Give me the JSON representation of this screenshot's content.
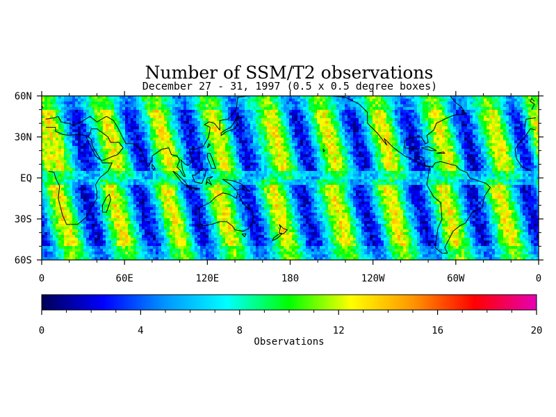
{
  "chart_data": {
    "type": "heatmap",
    "title": "Number of SSM/T2 observations",
    "subtitle": "December 27 - 31, 1997 (0.5 x 0.5 degree boxes)",
    "x_ticks": [
      "0",
      "60E",
      "120E",
      "180",
      "120W",
      "60W",
      "0"
    ],
    "x_tick_values": [
      0,
      60,
      120,
      180,
      240,
      300,
      360
    ],
    "y_ticks": [
      "60N",
      "30N",
      "EQ",
      "30S",
      "60S"
    ],
    "y_tick_values": [
      60,
      30,
      0,
      -30,
      -60
    ],
    "xlim": [
      0,
      360
    ],
    "ylim": [
      -60,
      60
    ],
    "colorbar": {
      "label": "Observations",
      "ticks": [
        "0",
        "4",
        "8",
        "12",
        "16",
        "20"
      ],
      "tick_values": [
        0,
        4,
        8,
        12,
        16,
        20
      ],
      "range": [
        0,
        20
      ],
      "colors": [
        "#000055",
        "#0000ff",
        "#0096ff",
        "#00ffff",
        "#00ff00",
        "#ffff00",
        "#ff9600",
        "#ff0000",
        "#e600b4"
      ]
    },
    "swath_bands": {
      "northern_hemisphere_high_longitudes": [
        8,
        50,
        88,
        128,
        170,
        208,
        248,
        290,
        330,
        360
      ],
      "northern_hemisphere_low_longitudes": [
        28,
        68,
        108,
        145,
        188,
        228,
        268,
        308,
        348
      ],
      "southern_hemisphere_high_longitudes": [
        15,
        55,
        95,
        132,
        172,
        215,
        255,
        295,
        335
      ],
      "southern_hemisphere_low_longitudes": [
        35,
        75,
        112,
        152,
        192,
        235,
        275,
        315,
        355
      ]
    }
  }
}
